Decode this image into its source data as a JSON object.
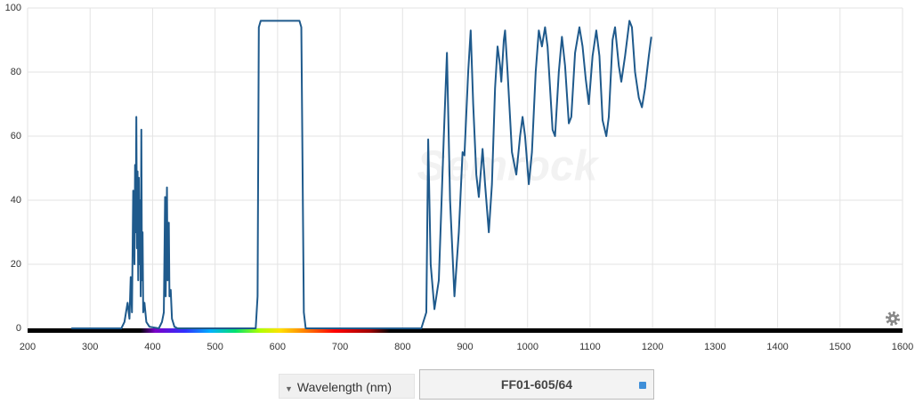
{
  "chart_data": {
    "type": "line",
    "watermark": "Semrock",
    "xlim": [
      200,
      1600
    ],
    "xticks": [
      200,
      300,
      400,
      500,
      600,
      700,
      800,
      900,
      1000,
      1100,
      1200,
      1300,
      1400,
      1500,
      1600
    ],
    "ylim": [
      0,
      100
    ],
    "yticks": [
      0,
      20,
      40,
      60,
      80,
      100
    ],
    "grid": true,
    "color": "#1f5a8c",
    "x": [
      270,
      350,
      355,
      360,
      363,
      365,
      367,
      369,
      371,
      372,
      373,
      374,
      375,
      376,
      377,
      378,
      379,
      380,
      381,
      382,
      383,
      384,
      385,
      387,
      390,
      395,
      410,
      415,
      418,
      420,
      421,
      423,
      424,
      426,
      427,
      429,
      431,
      435,
      440,
      565,
      568,
      570,
      573,
      600,
      635,
      638,
      642,
      645,
      830,
      838,
      841,
      845,
      851,
      858,
      866,
      871,
      876,
      883,
      890,
      896,
      899,
      905,
      909,
      913,
      918,
      922,
      928,
      932,
      938,
      943,
      948,
      952,
      956,
      958,
      962,
      964,
      968,
      975,
      982,
      988,
      992,
      996,
      1002,
      1007,
      1013,
      1018,
      1023,
      1028,
      1032,
      1040,
      1044,
      1050,
      1055,
      1060,
      1066,
      1070,
      1076,
      1083,
      1088,
      1093,
      1098,
      1104,
      1110,
      1115,
      1120,
      1126,
      1130,
      1136,
      1140,
      1146,
      1150,
      1156,
      1163,
      1167,
      1172,
      1178,
      1183,
      1188,
      1194,
      1198
    ],
    "values": [
      0,
      0,
      2,
      8,
      3,
      16,
      5,
      43,
      20,
      51,
      30,
      66,
      25,
      49,
      15,
      47,
      20,
      40,
      10,
      62,
      15,
      30,
      5,
      8,
      2,
      0.5,
      0,
      2,
      5,
      41,
      10,
      44,
      15,
      33,
      10,
      12,
      3,
      0.5,
      0,
      0,
      10,
      94,
      96,
      96,
      96,
      94,
      5,
      0,
      0,
      5,
      59,
      20,
      6,
      15,
      60,
      86,
      40,
      10,
      30,
      55,
      54,
      80,
      93,
      70,
      48,
      41,
      56,
      45,
      30,
      45,
      75,
      88,
      82,
      77,
      90,
      93,
      80,
      55,
      48,
      60,
      66,
      60,
      45,
      55,
      80,
      93,
      88,
      94,
      88,
      62,
      60,
      80,
      91,
      82,
      64,
      66,
      86,
      94,
      88,
      78,
      70,
      85,
      93,
      85,
      65,
      60,
      66,
      90,
      94,
      82,
      77,
      85,
      96,
      94,
      80,
      72,
      69,
      75,
      85,
      91
    ]
  },
  "controls": {
    "axis_select": "Wavelength (nm)",
    "filter_button": "FF01-605/64"
  }
}
